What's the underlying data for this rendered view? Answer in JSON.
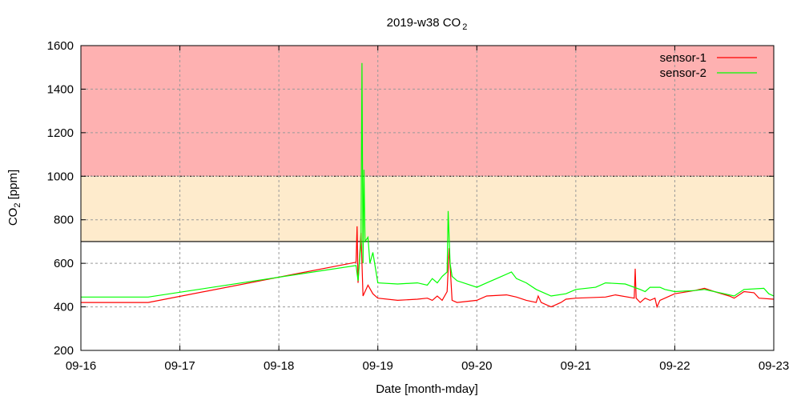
{
  "chart_data": {
    "type": "line",
    "title": "2019-w38 CO",
    "title_sub": "2",
    "xlabel": "Date [month-mday]",
    "ylabel": "CO",
    "ylabel_sub": "2",
    "ylabel_unit": " [ppm]",
    "xlim": [
      0,
      7
    ],
    "ylim": [
      200,
      1600
    ],
    "x_ticks": [
      0,
      1,
      2,
      3,
      4,
      5,
      6,
      7
    ],
    "x_tick_labels": [
      "09-16",
      "09-17",
      "09-18",
      "09-19",
      "09-20",
      "09-21",
      "09-22",
      "09-23"
    ],
    "y_ticks": [
      200,
      400,
      600,
      800,
      1000,
      1200,
      1400,
      1600
    ],
    "y_tick_labels": [
      "200",
      "400",
      "600",
      "800",
      "1000",
      "1200",
      "1400",
      "1600"
    ],
    "grid": true,
    "legend_position": "top-right",
    "bands": [
      {
        "from": 700,
        "to": 1000,
        "color": "#feebcc"
      },
      {
        "from": 1000,
        "to": 1600,
        "color": "#feb1b1"
      }
    ],
    "series": [
      {
        "name": "sensor-1",
        "color": "#ff0000",
        "x": [
          0,
          0.68,
          2.78,
          2.79,
          2.8,
          2.83,
          2.85,
          2.9,
          2.95,
          3.0,
          3.2,
          3.4,
          3.5,
          3.55,
          3.6,
          3.65,
          3.7,
          3.72,
          3.75,
          3.8,
          4.0,
          4.1,
          4.3,
          4.4,
          4.5,
          4.6,
          4.62,
          4.65,
          4.75,
          4.85,
          4.9,
          5.0,
          5.3,
          5.4,
          5.59,
          5.6,
          5.61,
          5.65,
          5.7,
          5.75,
          5.8,
          5.82,
          5.85,
          5.9,
          6.0,
          6.2,
          6.3,
          6.4,
          6.55,
          6.6,
          6.7,
          6.8,
          6.85,
          7.0
        ],
        "y": [
          420,
          420,
          605,
          770,
          510,
          740,
          450,
          500,
          460,
          440,
          430,
          435,
          440,
          430,
          450,
          430,
          470,
          670,
          430,
          420,
          430,
          450,
          455,
          445,
          430,
          420,
          450,
          420,
          400,
          420,
          435,
          440,
          445,
          455,
          440,
          575,
          440,
          420,
          440,
          430,
          440,
          400,
          430,
          440,
          460,
          475,
          485,
          470,
          450,
          440,
          470,
          465,
          440,
          435
        ]
      },
      {
        "name": "sensor-2",
        "color": "#00ff00",
        "x": [
          0,
          0.68,
          2.78,
          2.8,
          2.83,
          2.84,
          2.85,
          2.86,
          2.87,
          2.9,
          2.92,
          2.95,
          3.0,
          3.2,
          3.4,
          3.5,
          3.55,
          3.6,
          3.65,
          3.7,
          3.71,
          3.73,
          3.75,
          3.8,
          4.0,
          4.1,
          4.2,
          4.35,
          4.4,
          4.5,
          4.6,
          4.75,
          4.9,
          5.0,
          5.2,
          5.3,
          5.5,
          5.65,
          5.7,
          5.75,
          5.85,
          5.9,
          6.0,
          6.2,
          6.3,
          6.5,
          6.6,
          6.7,
          6.9,
          6.95,
          7.0
        ],
        "y": [
          445,
          445,
          590,
          520,
          700,
          1520,
          600,
          1030,
          700,
          720,
          600,
          650,
          510,
          505,
          510,
          500,
          530,
          510,
          540,
          560,
          840,
          600,
          540,
          520,
          490,
          510,
          530,
          560,
          530,
          510,
          480,
          450,
          460,
          480,
          490,
          510,
          505,
          480,
          470,
          490,
          490,
          480,
          470,
          475,
          480,
          460,
          450,
          480,
          485,
          460,
          450
        ]
      }
    ]
  }
}
